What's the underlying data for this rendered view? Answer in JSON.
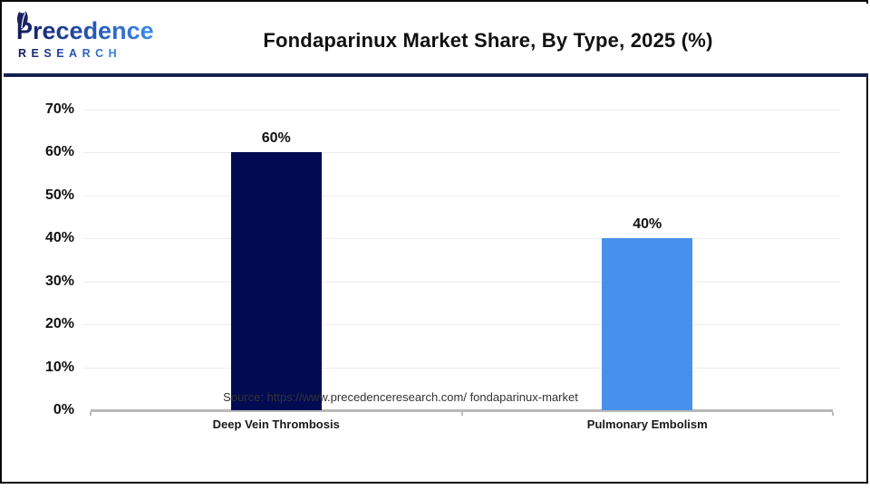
{
  "header": {
    "logo": {
      "name": "Precedence",
      "sub": "RESEARCH"
    },
    "title": "Fondaparinux Market Share, By Type, 2025 (%)"
  },
  "chart_data": {
    "type": "bar",
    "title": "Fondaparinux Market Share, By Type, 2025 (%)",
    "categories": [
      "Deep Vein Thrombosis",
      "Pulmonary Embolism"
    ],
    "values": [
      60,
      40
    ],
    "value_labels": [
      "60%",
      "40%"
    ],
    "bar_colors": [
      "#020b52",
      "#4791ec"
    ],
    "xlabel": "",
    "ylabel": "",
    "ylim": [
      0,
      70
    ],
    "yticks": [
      0,
      10,
      20,
      30,
      40,
      50,
      60,
      70
    ],
    "ytick_labels": [
      "0%",
      "10%",
      "20%",
      "30%",
      "40%",
      "50%",
      "60%",
      "70%"
    ],
    "grid": true,
    "legend_position": "none"
  },
  "footer": {
    "source": "Source: https://www.precedenceresearch.com/ fondaparinux-market"
  },
  "colors": {
    "bar_deep_vein_thrombosis": "#020b52",
    "bar_pulmonary_embolism": "#4791ec",
    "header_divider": "#16204f",
    "gridline": "#ececec",
    "axis_line": "#b9b9b9",
    "logo_navy": "#131a5c",
    "logo_blue": "#3f8ce8"
  }
}
